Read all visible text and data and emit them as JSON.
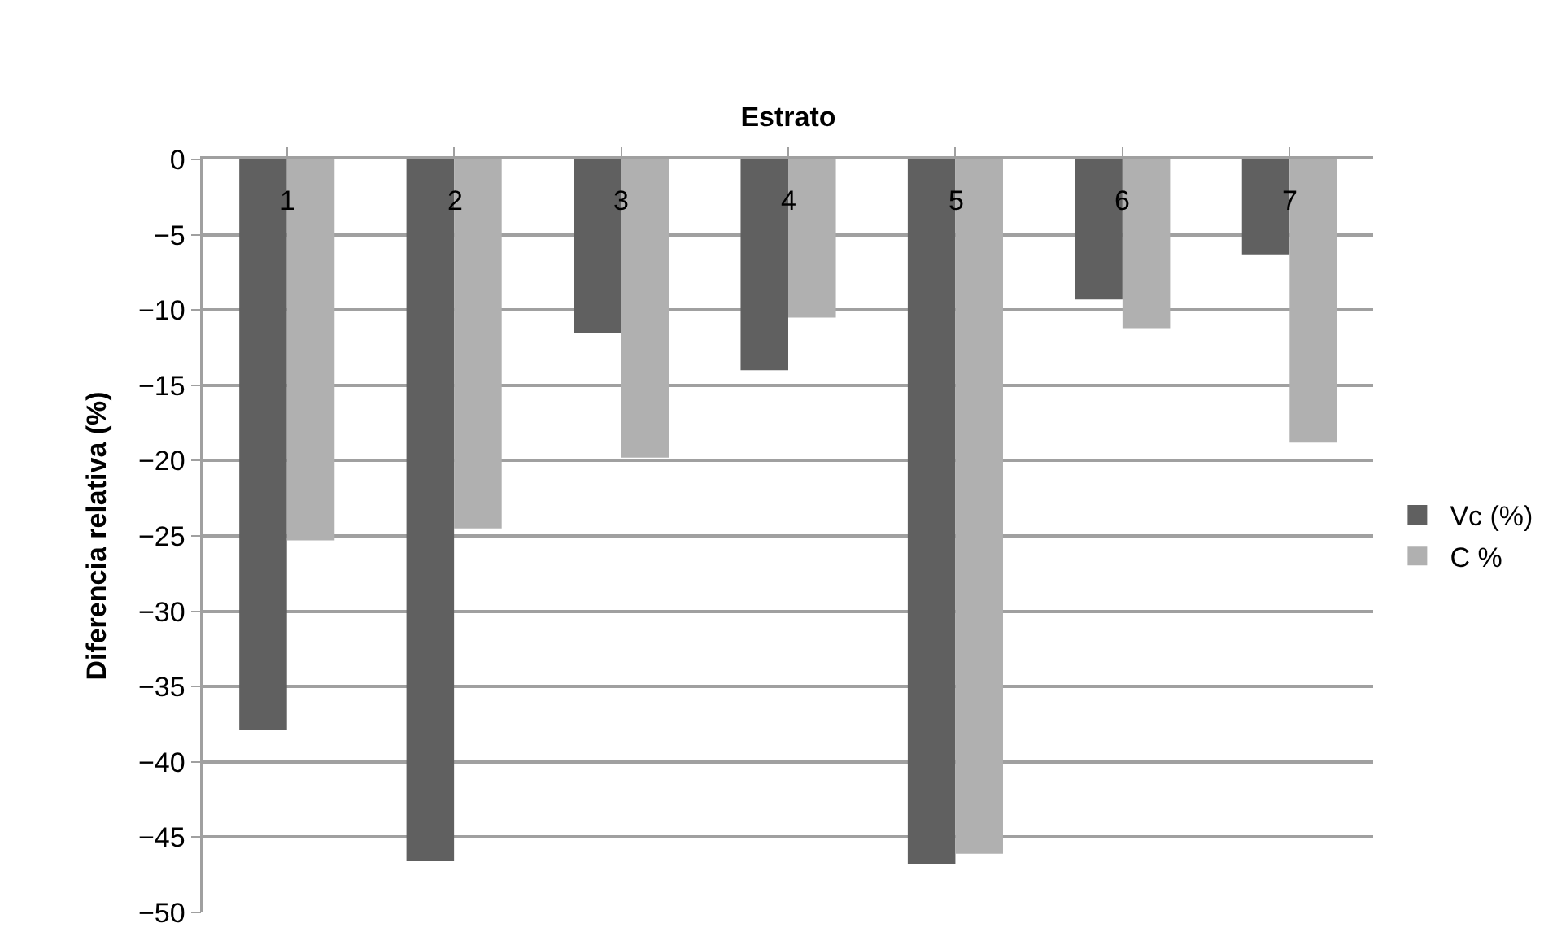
{
  "chart_data": {
    "type": "bar",
    "xlabel": "Estrato",
    "ylabel": "Diferencia relativa (%)",
    "categories": [
      "1",
      "2",
      "3",
      "4",
      "5",
      "6",
      "7"
    ],
    "series": [
      {
        "name": "Vc (%)",
        "color": "#606060",
        "values": [
          -37.9,
          -46.6,
          -11.5,
          -14.0,
          -46.8,
          -9.3,
          -6.3
        ]
      },
      {
        "name": "C %",
        "color": "#b0b0b0",
        "values": [
          -25.3,
          -24.5,
          -19.8,
          -10.5,
          -46.1,
          -11.2,
          -18.8
        ]
      }
    ],
    "ylim": [
      -50,
      0
    ],
    "yticks": [
      -50,
      -45,
      -40,
      -35,
      -30,
      -25,
      -20,
      -15,
      -10,
      -5,
      0
    ],
    "grid": "y",
    "legend": "right"
  }
}
